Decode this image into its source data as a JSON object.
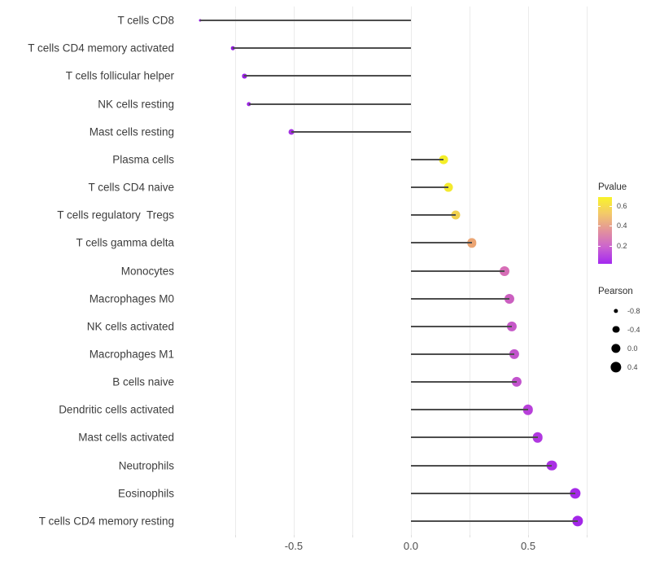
{
  "chart_data": {
    "type": "lollipop",
    "title": "",
    "xlabel": "",
    "ylabel": "",
    "x_axis": {
      "range": [
        -0.982,
        0.774
      ],
      "ticks": [
        -0.5,
        0.0,
        0.5
      ],
      "tick_labels": [
        "-0.5",
        "0.0",
        "0.5"
      ],
      "gridlines": [
        -0.75,
        -0.5,
        -0.25,
        0.0,
        0.25,
        0.5,
        0.75
      ],
      "grid_on": true
    },
    "points": [
      {
        "label": "T cells CD8",
        "pearson": -0.9,
        "pvalue": 0.01,
        "color": "#8912d6"
      },
      {
        "label": "T cells CD4 memory activated",
        "pearson": -0.76,
        "pvalue": 0.02,
        "color": "#9119e0"
      },
      {
        "label": "T cells follicular helper",
        "pearson": -0.71,
        "pvalue": 0.02,
        "color": "#9821e4"
      },
      {
        "label": "NK cells resting",
        "pearson": -0.69,
        "pvalue": 0.03,
        "color": "#9c25e4"
      },
      {
        "label": "Mast cells resting",
        "pearson": -0.51,
        "pvalue": 0.05,
        "color": "#a432e2"
      },
      {
        "label": "Plasma cells",
        "pearson": 0.14,
        "pvalue": 0.66,
        "color": "#f4ee28"
      },
      {
        "label": "T cells CD4 naive",
        "pearson": 0.16,
        "pvalue": 0.64,
        "color": "#f4ea2e"
      },
      {
        "label": "T cells regulatory  Tregs",
        "pearson": 0.19,
        "pvalue": 0.57,
        "color": "#f0d04e"
      },
      {
        "label": "T cells gamma delta",
        "pearson": 0.26,
        "pvalue": 0.45,
        "color": "#eba573"
      },
      {
        "label": "Monocytes",
        "pearson": 0.4,
        "pvalue": 0.28,
        "color": "#d66db6"
      },
      {
        "label": "Macrophages M0",
        "pearson": 0.42,
        "pvalue": 0.22,
        "color": "#cb5fc0"
      },
      {
        "label": "NK cells activated",
        "pearson": 0.43,
        "pvalue": 0.21,
        "color": "#c659c8"
      },
      {
        "label": "Macrophages M1",
        "pearson": 0.44,
        "pvalue": 0.19,
        "color": "#c254cc"
      },
      {
        "label": "B cells naive",
        "pearson": 0.45,
        "pvalue": 0.18,
        "color": "#c253cd"
      },
      {
        "label": "Dendritic cells activated",
        "pearson": 0.5,
        "pvalue": 0.12,
        "color": "#b840da"
      },
      {
        "label": "Mast cells activated",
        "pearson": 0.54,
        "pvalue": 0.09,
        "color": "#b038e0"
      },
      {
        "label": "Neutrophils",
        "pearson": 0.6,
        "pvalue": 0.06,
        "color": "#aa30e4"
      },
      {
        "label": "Eosinophils",
        "pearson": 0.7,
        "pvalue": 0.04,
        "color": "#a529e8"
      },
      {
        "label": "T cells CD4 memory resting",
        "pearson": 0.71,
        "pvalue": 0.03,
        "color": "#a327e8"
      }
    ],
    "legend": {
      "position": "right",
      "pvalue": {
        "title": "Pvalue",
        "ticks": [
          0.6,
          0.4,
          0.2
        ],
        "tick_labels": [
          "0.6",
          "0.4",
          "0.2"
        ],
        "range": [
          0.02,
          0.69
        ],
        "gradient_stops_bottom_to_top": [
          "#a328f0",
          "#cb63cf",
          "#e3939b",
          "#f3c96a",
          "#f9f32a"
        ]
      },
      "pearson": {
        "title": "Pearson",
        "sizes": [
          -0.8,
          -0.4,
          0.0,
          0.4
        ],
        "size_labels": [
          "-0.8",
          "-0.4",
          "0.0",
          "0.4"
        ],
        "dot_color": "#000000"
      }
    },
    "stem_color": "#4d4d4d",
    "grid_color": "#ebebeb"
  }
}
